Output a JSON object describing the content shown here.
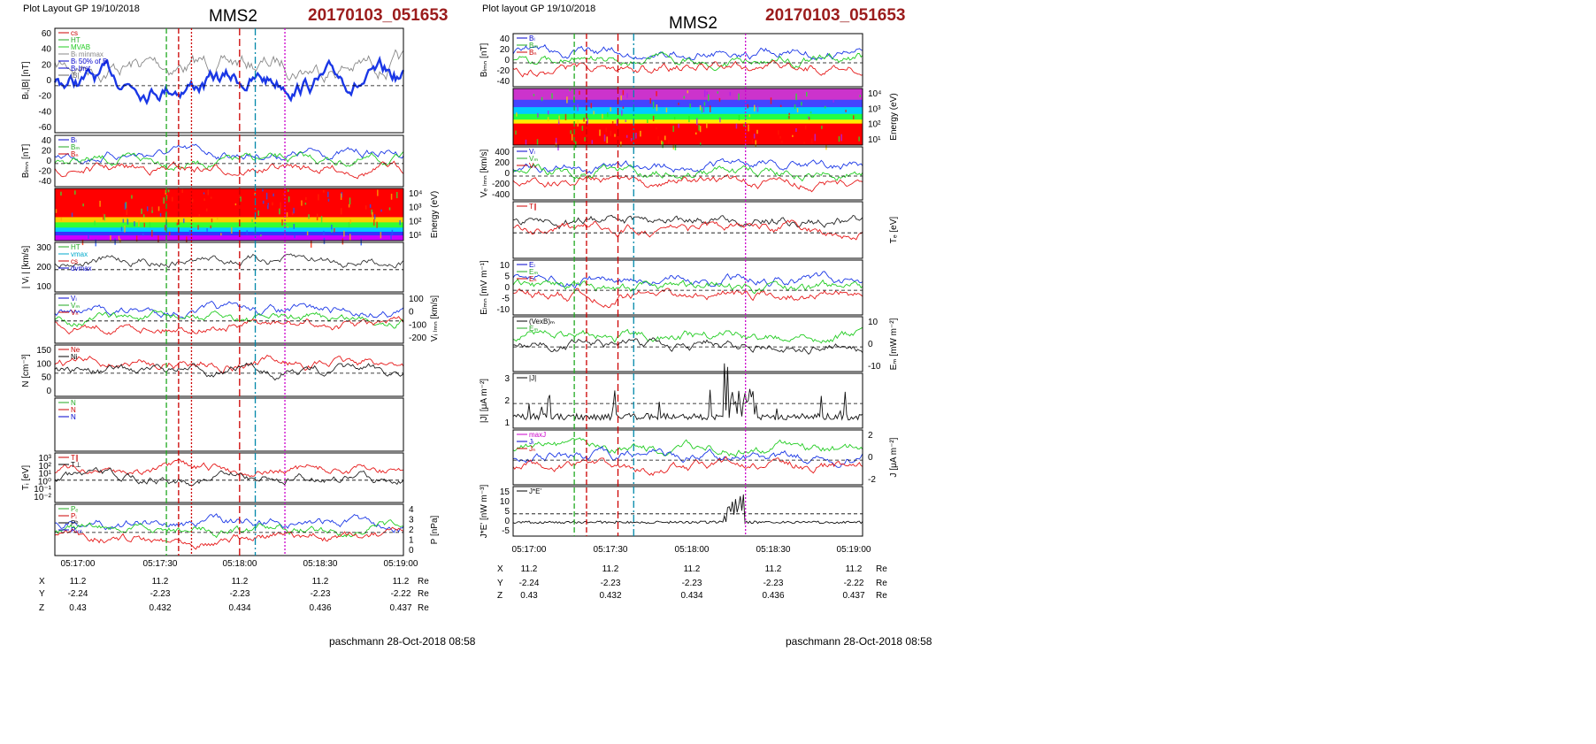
{
  "left": {
    "header": "Plot Layout GP 19/10/2018",
    "title": "MMS2",
    "event": "20170103_051653",
    "footer": "paschmann 28-Oct-2018 08:58",
    "time_ticks": [
      "05:17:00",
      "05:17:30",
      "05:18:00",
      "05:18:30",
      "05:19:00"
    ],
    "orbit": {
      "rows": [
        {
          "label": "X",
          "values": [
            "11.2",
            "11.2",
            "11.2",
            "11.2",
            "11.2"
          ],
          "unit": "Re"
        },
        {
          "label": "Y",
          "values": [
            "-2.24",
            "-2.23",
            "-2.23",
            "-2.23",
            "-2.22"
          ],
          "unit": "Re"
        },
        {
          "label": "Z",
          "values": [
            "0.43",
            "0.432",
            "0.434",
            "0.436",
            "0.437"
          ],
          "unit": "Re"
        }
      ]
    },
    "markers": [
      {
        "t": 0.32,
        "color": "#22aa22",
        "dash": "6,3"
      },
      {
        "t": 0.355,
        "color": "#cc0000",
        "dash": "6,3"
      },
      {
        "t": 0.392,
        "color": "#cc0000",
        "dash": "2,2"
      },
      {
        "t": 0.53,
        "color": "#cc0000",
        "dash": "8,4"
      },
      {
        "t": 0.575,
        "color": "#0088aa",
        "dash": "8,3,2,3"
      },
      {
        "t": 0.66,
        "color": "#cc00cc",
        "dash": "2,2"
      }
    ],
    "panels": [
      {
        "ylabel": "Bₗ,|B| [nT]",
        "ylabel_side": "left",
        "ticks": [
          "60",
          "40",
          "20",
          "0",
          "-20",
          "-40",
          "-60"
        ],
        "legend": [
          {
            "text": "cs",
            "color": "#cc0000"
          },
          {
            "text": "HT",
            "color": "#22aa22"
          },
          {
            "text": "MVAB",
            "color": "#22cc22"
          },
          {
            "text": "Bₗ minmax",
            "color": "#888888"
          },
          {
            "text": "Bₗ 50% of Bₗ",
            "color": "#0000cc"
          },
          {
            "text": "Bₗ brst",
            "color": "#0000cc"
          },
          {
            "text": "|B|",
            "color": "#666666"
          }
        ],
        "kind": "lines",
        "series": [
          {
            "color": "#888888"
          },
          {
            "color": "#1a37e6",
            "bold": true
          }
        ]
      },
      {
        "ylabel": "Bₗₘₙ [nT]",
        "ylabel_side": "left",
        "ticks": [
          "40",
          "20",
          "0",
          "-20",
          "-40"
        ],
        "legend": [
          {
            "text": "Bₗ",
            "color": "#0000cc"
          },
          {
            "text": "Bₘ",
            "color": "#22aa22"
          },
          {
            "text": "Bₙ",
            "color": "#cc0000"
          }
        ],
        "kind": "lines",
        "series": [
          {
            "color": "#1a37e6"
          },
          {
            "color": "#22cc22"
          },
          {
            "color": "#e61a1a"
          }
        ]
      },
      {
        "ylabel": "Energy (eV)",
        "ylabel_side": "right",
        "ticks": [
          "10⁴",
          "10³",
          "10²",
          "10¹"
        ],
        "legend": [],
        "kind": "spectrogram"
      },
      {
        "ylabel": "| Vᵢ | [km/s]",
        "ylabel_side": "left",
        "ticks": [
          "300",
          "200",
          "100"
        ],
        "legend": [
          {
            "text": "HT",
            "color": "#22aa22"
          },
          {
            "text": "vmax",
            "color": "#00aacc"
          },
          {
            "text": "cs",
            "color": "#cc0000"
          },
          {
            "text": "dvmax",
            "color": "#0000cc"
          }
        ],
        "kind": "lines",
        "series": [
          {
            "color": "#333333"
          }
        ]
      },
      {
        "ylabel": "Vᵢ ₗₘₙ [km/s]",
        "ylabel_side": "right",
        "ticks": [
          "100",
          "0",
          "-100",
          "-200"
        ],
        "legend": [
          {
            "text": "Vₗ",
            "color": "#0000cc"
          },
          {
            "text": "Vₘ",
            "color": "#22aa22"
          },
          {
            "text": "Vₙ",
            "color": "#cc0000"
          }
        ],
        "kind": "lines",
        "series": [
          {
            "color": "#1a37e6"
          },
          {
            "color": "#22cc22"
          },
          {
            "color": "#e61a1a"
          }
        ]
      },
      {
        "ylabel": "N [cm⁻³]",
        "ylabel_side": "left",
        "ticks": [
          "150",
          "100",
          "50",
          "0"
        ],
        "legend": [
          {
            "text": "Ne",
            "color": "#cc0000"
          },
          {
            "text": "Ni",
            "color": "#000000"
          }
        ],
        "kind": "lines",
        "series": [
          {
            "color": "#e61a1a"
          },
          {
            "color": "#222222"
          }
        ]
      },
      {
        "ylabel": "",
        "ylabel_side": "left",
        "ticks": [],
        "legend": [
          {
            "text": "N",
            "color": "#22aa22"
          },
          {
            "text": "N",
            "color": "#cc0000"
          },
          {
            "text": "N",
            "color": "#0000cc"
          }
        ],
        "kind": "blank"
      },
      {
        "ylabel": "Tᵢ [eV]",
        "ylabel_side": "left",
        "ticks": [
          "10³",
          "10²",
          "10¹",
          "10⁰",
          "10⁻¹",
          "10⁻²"
        ],
        "legend": [
          {
            "text": "T∥",
            "color": "#cc0000"
          },
          {
            "text": "T⊥",
            "color": "#000000"
          }
        ],
        "kind": "lines",
        "series": [
          {
            "color": "#e61a1a"
          },
          {
            "color": "#222222"
          }
        ]
      },
      {
        "ylabel": "P [nPa]",
        "ylabel_side": "right",
        "ticks": [
          "4",
          "3",
          "2",
          "1",
          "0"
        ],
        "legend": [
          {
            "text": "Pₑ",
            "color": "#22aa22"
          },
          {
            "text": "Pᵢ",
            "color": "#cc0000"
          },
          {
            "text": "Pᵇ",
            "color": "#000000"
          },
          {
            "text": "Pₜₒₜ",
            "color": "#0000cc"
          }
        ],
        "kind": "lines",
        "series": [
          {
            "color": "#1a37e6"
          },
          {
            "color": "#22cc22"
          },
          {
            "color": "#e61a1a"
          }
        ]
      }
    ]
  },
  "right": {
    "header": "Plot layout GP 19/10/2018",
    "title": "MMS2",
    "event": "20170103_051653",
    "footer": "paschmann 28-Oct-2018 08:58",
    "time_ticks": [
      "05:17:00",
      "05:17:30",
      "05:18:00",
      "05:18:30",
      "05:19:00"
    ],
    "orbit": {
      "rows": [
        {
          "label": "X",
          "values": [
            "11.2",
            "11.2",
            "11.2",
            "11.2",
            "11.2"
          ],
          "unit": "Re"
        },
        {
          "label": "Y",
          "values": [
            "-2.24",
            "-2.23",
            "-2.23",
            "-2.23",
            "-2.22"
          ],
          "unit": "Re"
        },
        {
          "label": "Z",
          "values": [
            "0.43",
            "0.432",
            "0.434",
            "0.436",
            "0.437"
          ],
          "unit": "Re"
        }
      ]
    },
    "markers": [
      {
        "t": 0.175,
        "color": "#22aa22",
        "dash": "6,3"
      },
      {
        "t": 0.21,
        "color": "#cc0000",
        "dash": "6,3"
      },
      {
        "t": 0.3,
        "color": "#cc0000",
        "dash": "8,4"
      },
      {
        "t": 0.345,
        "color": "#0088aa",
        "dash": "8,3,2,3"
      },
      {
        "t": 0.665,
        "color": "#cc00cc",
        "dash": "2,2"
      }
    ],
    "panels": [
      {
        "ylabel": "Bₗₘₙ [nT]",
        "ylabel_side": "left",
        "ticks": [
          "40",
          "20",
          "0",
          "-20",
          "-40"
        ],
        "legend": [
          {
            "text": "Bₗ",
            "color": "#0000cc"
          },
          {
            "text": "Bₘ",
            "color": "#22aa22"
          },
          {
            "text": "Bₙ",
            "color": "#cc0000"
          }
        ],
        "kind": "lines",
        "series": [
          {
            "color": "#1a37e6"
          },
          {
            "color": "#22cc22"
          },
          {
            "color": "#e61a1a"
          }
        ]
      },
      {
        "ylabel": "Energy (eV)",
        "ylabel_side": "right",
        "ticks": [
          "10⁴",
          "10³",
          "10²",
          "10¹"
        ],
        "legend": [],
        "kind": "spectrogram2"
      },
      {
        "ylabel": "Vₑ ₗₘₙ [km/s]",
        "ylabel_side": "left",
        "ticks": [
          "400",
          "200",
          "0",
          "-200",
          "-400"
        ],
        "legend": [
          {
            "text": "Vₗ",
            "color": "#0000cc"
          },
          {
            "text": "Vₘ",
            "color": "#22aa22"
          },
          {
            "text": "Vₙ",
            "color": "#cc0000"
          }
        ],
        "kind": "lines",
        "series": [
          {
            "color": "#1a37e6"
          },
          {
            "color": "#22cc22"
          },
          {
            "color": "#e61a1a"
          }
        ]
      },
      {
        "ylabel": "Tₑ [eV]",
        "ylabel_side": "right",
        "ticks": [],
        "legend": [
          {
            "text": "T∥",
            "color": "#cc0000"
          }
        ],
        "kind": "lines",
        "series": [
          {
            "color": "#222222"
          },
          {
            "color": "#e61a1a"
          }
        ]
      },
      {
        "ylabel": "Eₗₘₙ [mV m⁻¹]",
        "ylabel_side": "left",
        "ticks": [
          "10",
          "5",
          "0",
          "-5",
          "-10"
        ],
        "legend": [
          {
            "text": "Eₗ",
            "color": "#0000cc"
          },
          {
            "text": "Eₘ",
            "color": "#22aa22"
          },
          {
            "text": "Eₙ",
            "color": "#cc0000"
          }
        ],
        "kind": "lines",
        "series": [
          {
            "color": "#1a37e6"
          },
          {
            "color": "#22cc22"
          },
          {
            "color": "#e61a1a"
          }
        ]
      },
      {
        "ylabel": "Eₘ [mW m⁻²]",
        "ylabel_side": "right",
        "ticks": [
          "10",
          "0",
          "-10"
        ],
        "legend": [
          {
            "text": "(VexB)ₘ",
            "color": "#000000"
          },
          {
            "text": "Eₘ",
            "color": "#22aa22"
          }
        ],
        "kind": "lines",
        "series": [
          {
            "color": "#22cc22"
          },
          {
            "color": "#222222"
          }
        ]
      },
      {
        "ylabel": "|J| [μA m⁻²]",
        "ylabel_side": "left",
        "ticks": [
          "3",
          "2",
          "1"
        ],
        "legend": [
          {
            "text": "|J|",
            "color": "#000000"
          }
        ],
        "kind": "spiky",
        "series": [
          {
            "color": "#111111"
          }
        ]
      },
      {
        "ylabel": "J [μA m⁻²]",
        "ylabel_side": "right",
        "ticks": [
          "2",
          "0",
          "-2"
        ],
        "legend": [
          {
            "text": "maxJ",
            "color": "#cc00cc"
          },
          {
            "text": "Jₗ",
            "color": "#0000cc"
          },
          {
            "text": "Jₙ",
            "color": "#cc0000"
          }
        ],
        "kind": "lines",
        "series": [
          {
            "color": "#22cc22"
          },
          {
            "color": "#1a37e6"
          },
          {
            "color": "#e61a1a"
          }
        ]
      },
      {
        "ylabel": "J*E' [nW m⁻³]",
        "ylabel_side": "left",
        "ticks": [
          "15",
          "10",
          "5",
          "0",
          "-5"
        ],
        "legend": [
          {
            "text": "J*E'",
            "color": "#000000"
          }
        ],
        "kind": "spiky2",
        "series": [
          {
            "color": "#111111"
          }
        ]
      }
    ]
  }
}
